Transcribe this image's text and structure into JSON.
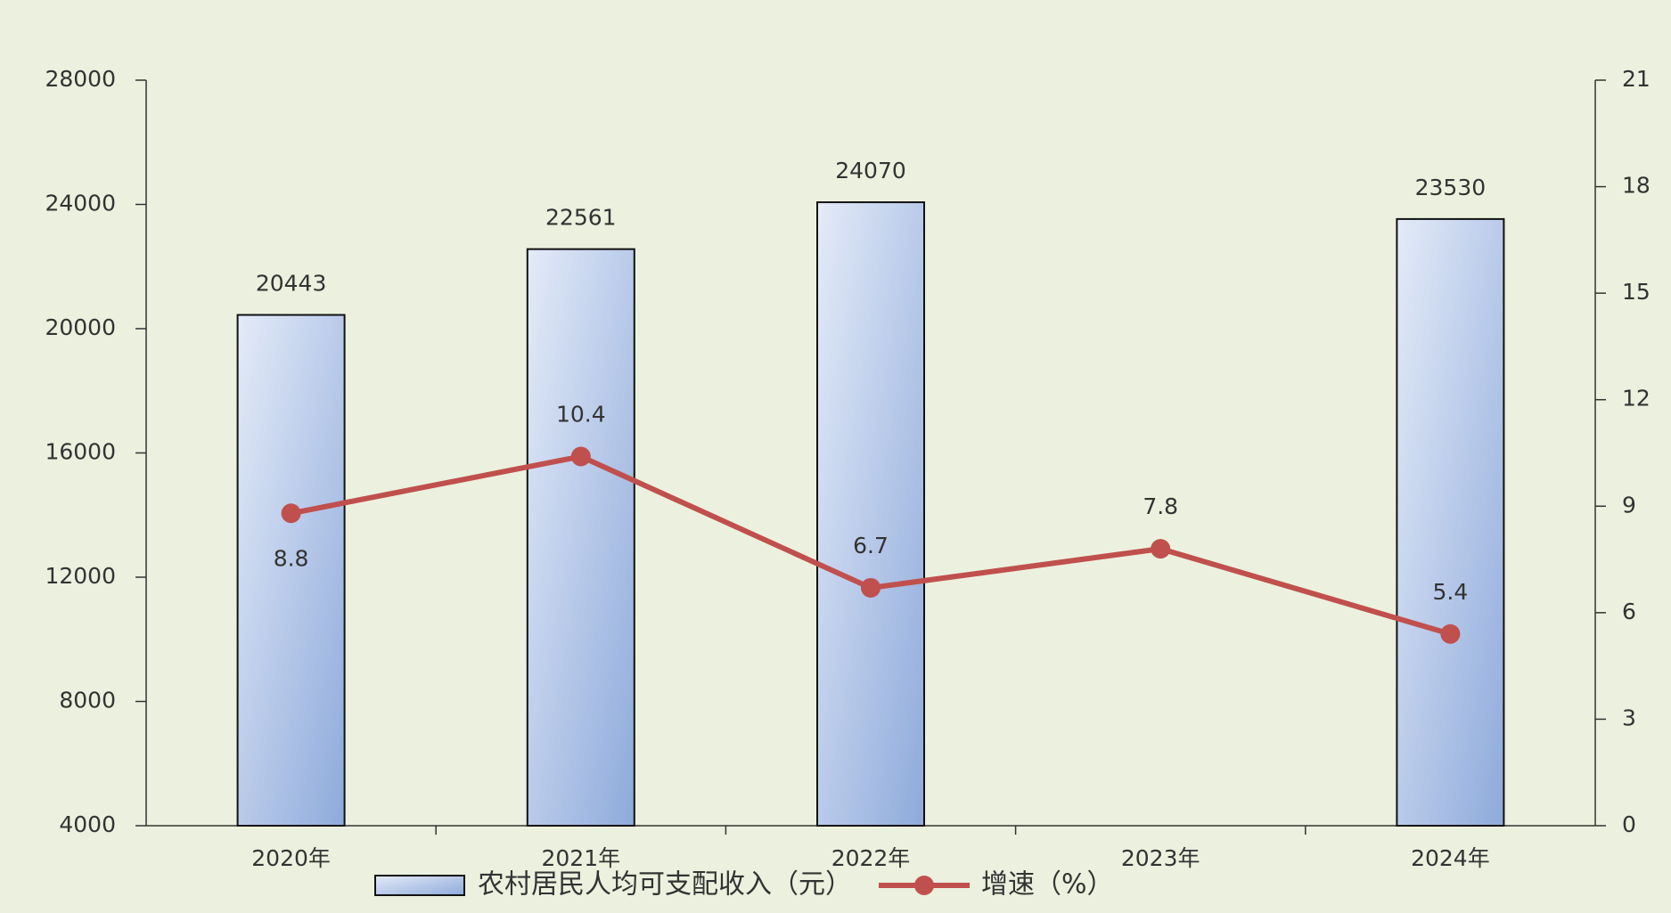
{
  "chart_data": {
    "type": "bar",
    "categories": [
      "2020年",
      "2021年",
      "2022年",
      "2023年",
      "2024年"
    ],
    "series": [
      {
        "name": "农村居民人均可支配收入（元）",
        "type": "bar",
        "color": "#8eaadb",
        "values": [
          20443,
          22561,
          24070,
          null,
          23530
        ]
      },
      {
        "name": "增速（%）",
        "type": "line",
        "axis": "y2",
        "color": "#c0504d",
        "values": [
          8.8,
          10.4,
          6.7,
          7.8,
          5.4
        ]
      }
    ],
    "ylim": [
      4000,
      28000
    ],
    "yticks": [
      4000,
      8000,
      12000,
      16000,
      20000,
      24000,
      28000
    ],
    "y2lim": [
      0,
      21
    ],
    "y2ticks": [
      0,
      3,
      6,
      9,
      12,
      15,
      18,
      21
    ],
    "legend": "bottom"
  }
}
